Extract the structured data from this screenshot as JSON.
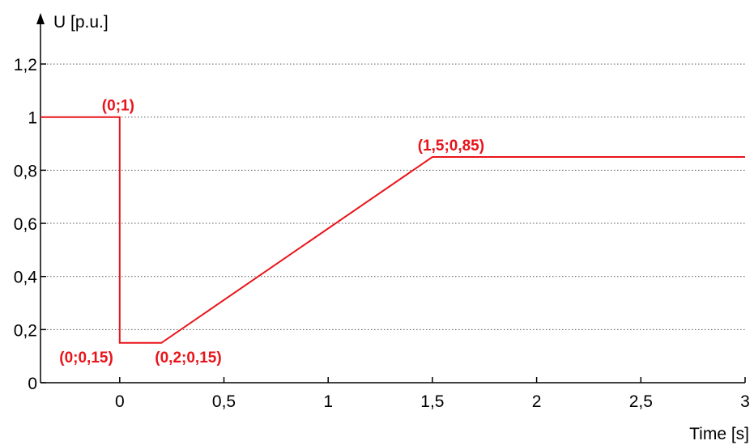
{
  "chart_data": {
    "type": "line",
    "ylabel": "U [p.u.]",
    "xlabel": "Time [s]",
    "xlim": [
      -0.38,
      3.0
    ],
    "ylim": [
      0,
      1.38
    ],
    "grid": true,
    "x_ticks": [
      0,
      0.5,
      1,
      1.5,
      2,
      2.5,
      3
    ],
    "x_tick_labels": [
      "0",
      "0,5",
      "1",
      "1,5",
      "2",
      "2,5",
      "3"
    ],
    "y_ticks": [
      0,
      0.2,
      0.4,
      0.6,
      0.8,
      1,
      1.2
    ],
    "y_tick_labels": [
      "0",
      "0,2",
      "0,4",
      "0,6",
      "0,8",
      "1",
      "1,2"
    ],
    "series": [
      {
        "color": "#e8141a",
        "x": [
          -0.38,
          0,
          0,
          0.2,
          1.5,
          3.0
        ],
        "y": [
          1,
          1,
          0.15,
          0.15,
          0.85,
          0.85
        ]
      }
    ],
    "annotations": [
      {
        "text": "(0;1)",
        "x": 0,
        "y": 1,
        "color": "#e8141a"
      },
      {
        "text": "(0;0,15)",
        "x": 0,
        "y": 0.15,
        "color": "#e8141a"
      },
      {
        "text": "(0,2;0,15)",
        "x": 0.2,
        "y": 0.15,
        "color": "#e8141a"
      },
      {
        "text": "(1,5;0,85)",
        "x": 1.5,
        "y": 0.85,
        "color": "#e8141a"
      }
    ]
  }
}
